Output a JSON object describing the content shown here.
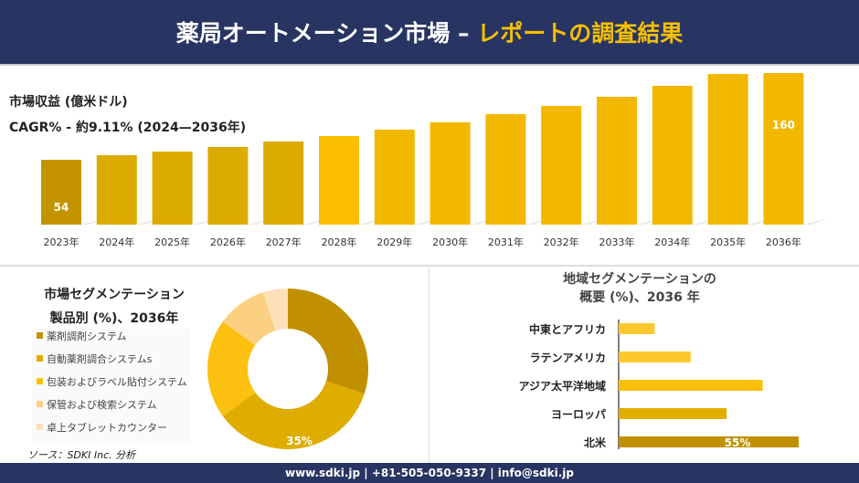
{
  "header": {
    "title_main": "薬局オートメーション市場 –",
    "title_accent": "レポートの調査結果"
  },
  "colors": {
    "header_bg": "#283462",
    "accent": "#f5c000"
  },
  "chart_data": [
    {
      "type": "bar",
      "title": "市場収益 (億米ドル)",
      "subtitle": "CAGR% - 約9.11% (2024—2036年)",
      "categories": [
        "2023年",
        "2024年",
        "2025年",
        "2026年",
        "2027年",
        "2028年",
        "2029年",
        "2030年",
        "2031年",
        "2032年",
        "2033年",
        "2034年",
        "2035年",
        "2036年"
      ],
      "values": [
        54,
        59,
        63,
        68,
        74,
        80,
        87,
        95,
        104,
        113,
        123,
        135,
        148,
        160
      ],
      "data_labels": {
        "0": "54",
        "13": "160"
      },
      "grid": false
    },
    {
      "type": "pie",
      "donut": true,
      "title_line1": "市場セグメンテーション",
      "title_line2": "製品別 (%)、2036年",
      "slices": [
        {
          "name": "薬剤調剤システム",
          "value": 30,
          "color": "#c09000"
        },
        {
          "name": "自動薬剤調合システムs",
          "value": 35,
          "color": "#dfac00",
          "label": "35%"
        },
        {
          "name": "包装およびラベル貼付システム",
          "value": 20,
          "color": "#fbc010"
        },
        {
          "name": "保管および検索システム",
          "value": 10,
          "color": "#fbd080"
        },
        {
          "name": "卓上タブレットカウンター",
          "value": 5,
          "color": "#fde0b8"
        }
      ],
      "legend": "left"
    },
    {
      "type": "bar",
      "orientation": "horizontal",
      "title_line1": "地域セグメンテーションの",
      "title_line2": "概要 (%)、2036 年",
      "categories": [
        "中東とアフリカ",
        "ラテンアメリカ",
        "アジア太平洋地域",
        "ヨーロッパ",
        "北米"
      ],
      "values": [
        11,
        22,
        44,
        33,
        55
      ],
      "colors": [
        "#fcc830",
        "#fcc830",
        "#fcc000",
        "#e3ad00",
        "#c09000"
      ],
      "data_labels": {
        "4": "55%"
      }
    }
  ],
  "source": "ソース：SDKI Inc. 分析",
  "footer": "www.sdki.jp | +81-505-050-9337 | info@sdki.jp"
}
